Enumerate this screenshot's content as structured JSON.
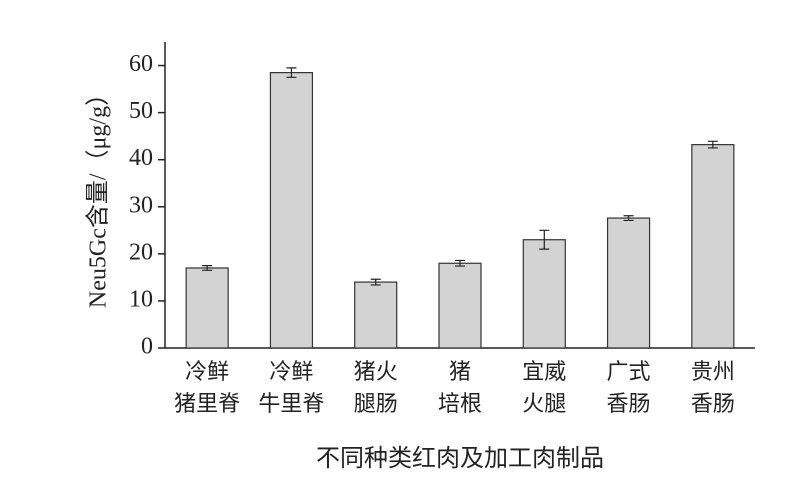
{
  "chart_data": {
    "type": "bar",
    "categories": [
      "冷鲜\n猪里脊",
      "冷鲜\n牛里脊",
      "猪火\n腿肠",
      "猪\n培根",
      "宜威\n火腿",
      "广式\n香肠",
      "贵州\n香肠"
    ],
    "values": [
      17,
      58.5,
      14,
      18,
      23,
      27.6,
      43.2
    ],
    "errors": [
      0.5,
      1,
      0.6,
      0.6,
      2,
      0.5,
      0.7
    ],
    "color": "#d3d3d3",
    "y_label": "Neu5Gc含量/（μg/g）",
    "x_label": "不同种类红肉及加工肉制品",
    "ylim": [
      0,
      65
    ],
    "yticks": [
      0,
      10,
      20,
      30,
      40,
      50,
      60
    ],
    "grid": false
  }
}
